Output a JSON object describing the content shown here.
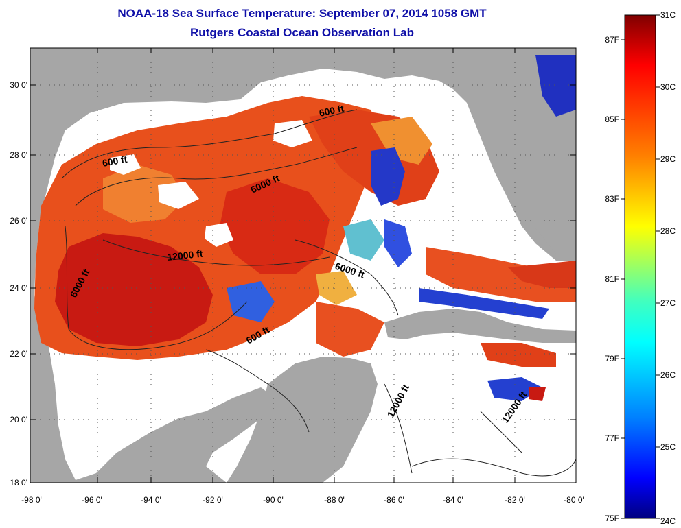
{
  "title": {
    "line1": "NOAA-18 Sea Surface Temperature:  September 07, 2014 1058 GMT",
    "line2": "Rutgers Coastal Ocean Observation Lab"
  },
  "axes": {
    "lat_labels": [
      "30 0'",
      "28 0'",
      "26 0'",
      "24 0'",
      "22 0'",
      "20 0'",
      "18 0'"
    ],
    "lon_labels": [
      "-98 0'",
      "-96 0'",
      "-94 0'",
      "-92 0'",
      "-90 0'",
      "-88 0'",
      "-86 0'",
      "-84 0'",
      "-82 0'",
      "-80 0'"
    ]
  },
  "contour_labels": [
    "600 ft",
    "600 ft",
    "6000 ft",
    "6000 ft",
    "6000 ft",
    "12000 ft",
    "600 ft",
    "12000 ft",
    "12000 ft"
  ],
  "colorbar": {
    "celsius": [
      "31C",
      "30C",
      "29C",
      "28C",
      "27C",
      "26C",
      "25C",
      "24C"
    ],
    "fahrenheit": [
      "87F",
      "85F",
      "83F",
      "81F",
      "79F",
      "77F",
      "75F"
    ]
  },
  "colors": {
    "title": "#1010a8",
    "land": "#a6a6a6",
    "cloud": "#ffffff",
    "warm": "#e03010",
    "hot": "#b01010",
    "mid": "#f07030",
    "cool": "#2030c0"
  }
}
